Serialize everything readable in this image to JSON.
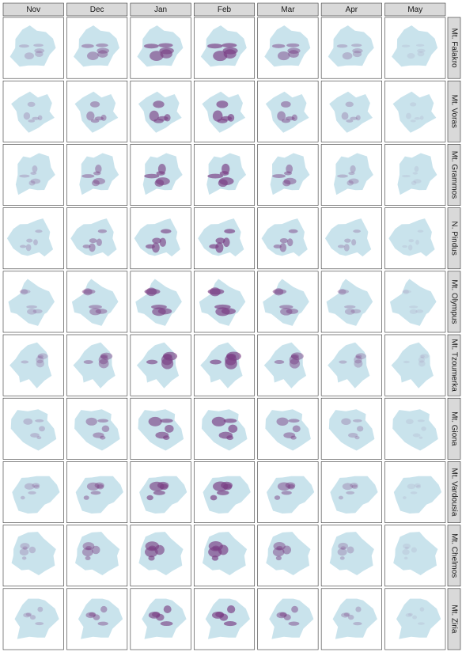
{
  "columns": [
    "Nov",
    "Dec",
    "Jan",
    "Feb",
    "Mar",
    "Apr",
    "May"
  ],
  "rows": [
    "Mt. Falakro",
    "Mt. Voras",
    "Mt. Grammos",
    "N. Pindus",
    "Mt. Olympus",
    "Mt. Tzoumerka",
    "Mt. Giona",
    "Mt. Vardousia",
    "Mt. Chelmos",
    "Mt. Ziria"
  ]
}
